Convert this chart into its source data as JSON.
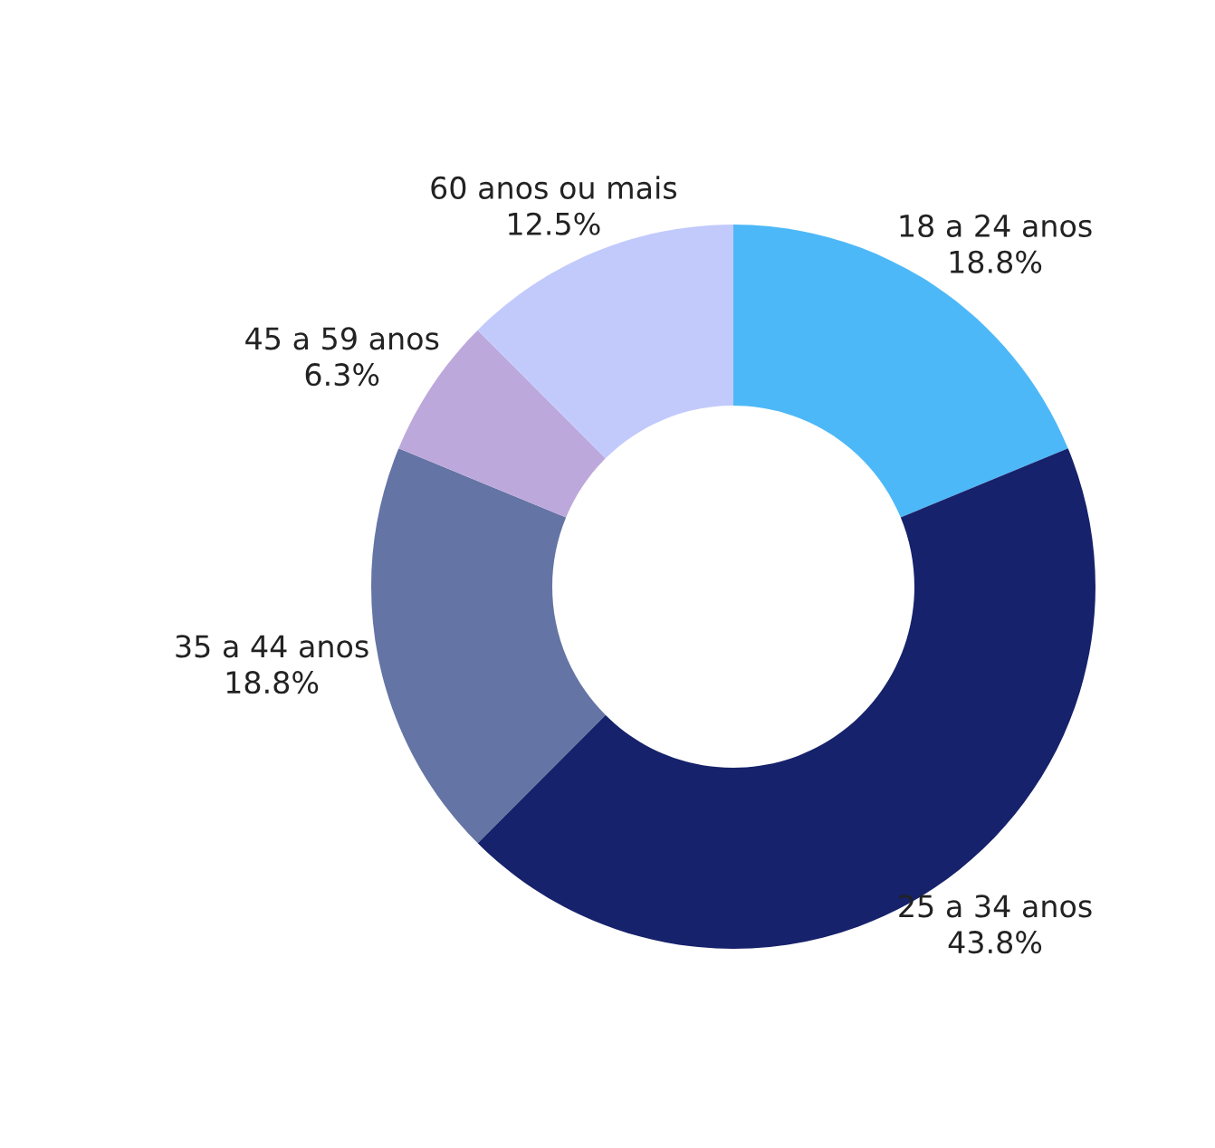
{
  "chart_data": {
    "type": "donut",
    "categories": [
      "18 a 24 anos",
      "25 a 34 anos",
      "35 a 44 anos",
      "45 a 59 anos",
      "60 anos ou mais"
    ],
    "values": [
      18.8,
      43.8,
      18.8,
      6.3,
      12.5
    ],
    "colors": [
      "#4db8f8",
      "#16226b",
      "#6474a4",
      "#bda8dc",
      "#c2cafc"
    ],
    "value_labels": [
      "18.8%",
      "43.8%",
      "18.8%",
      "6.3%",
      "12.5%"
    ],
    "legend": false
  }
}
